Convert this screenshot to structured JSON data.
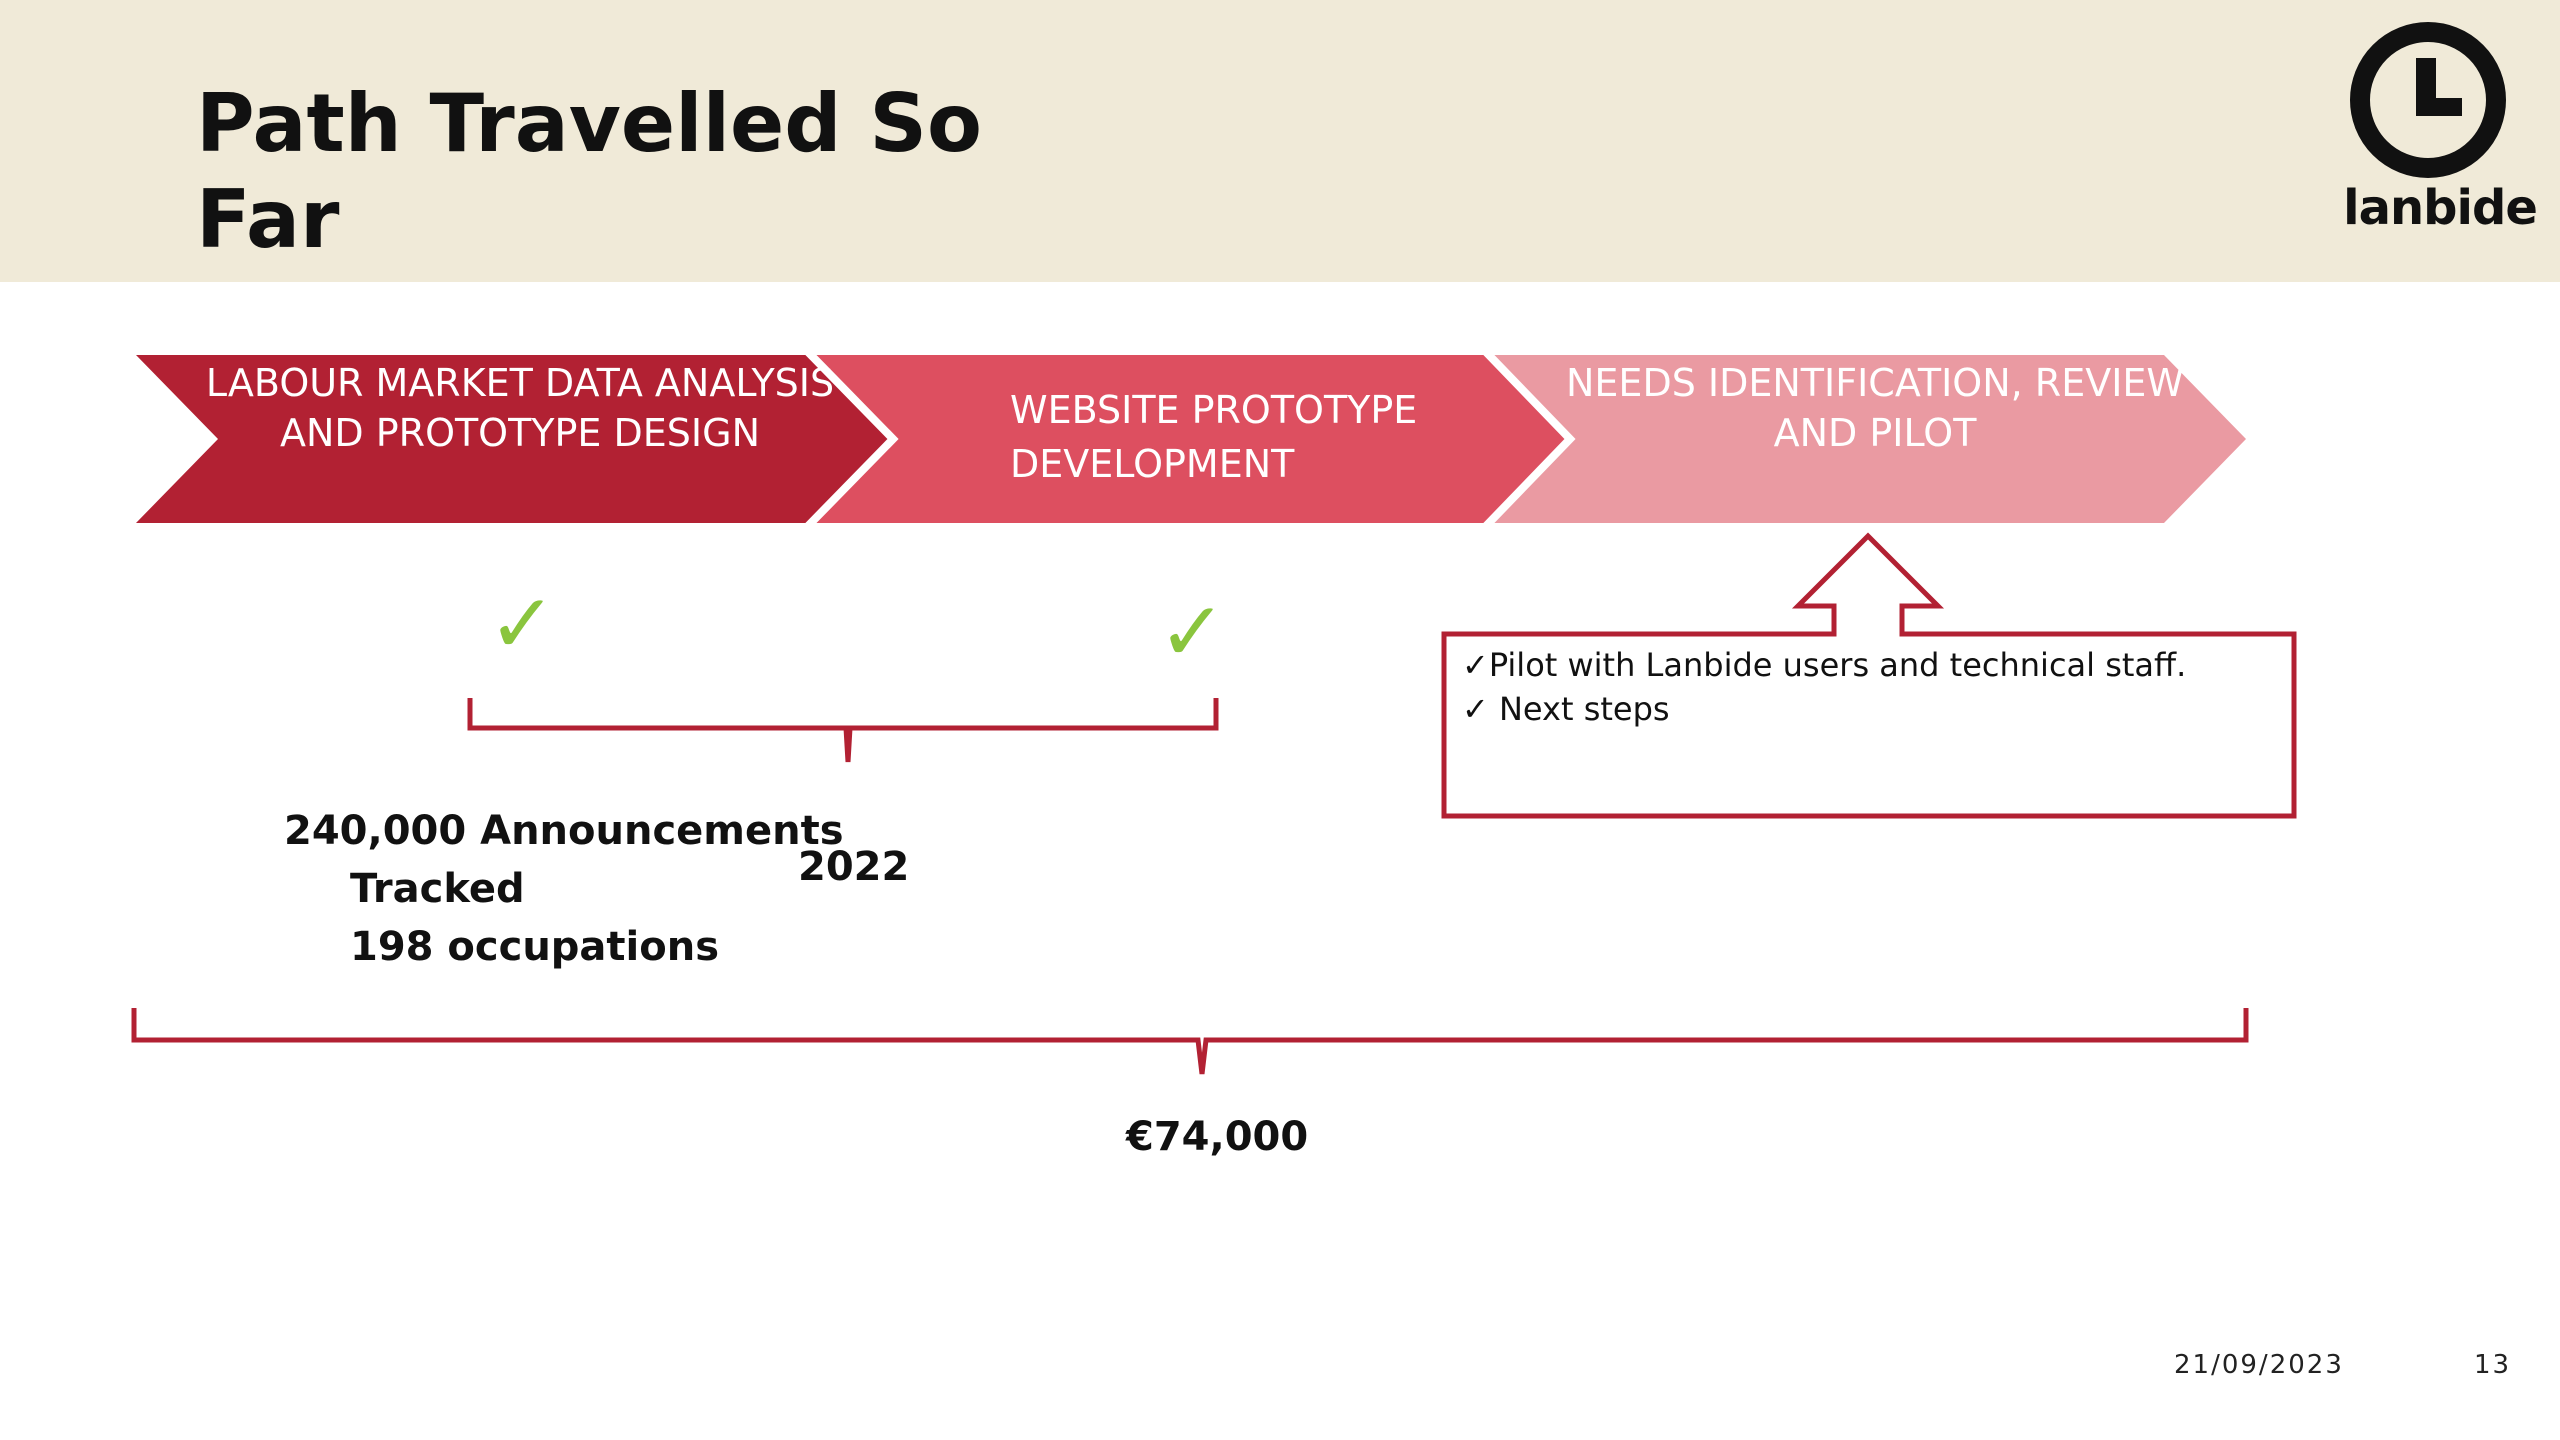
{
  "slide": {
    "title": "Path Travelled So Far",
    "logo_text": "lanbide",
    "colors": {
      "header_bg": "#f0ead8",
      "dark_red": "#b22133",
      "mid_red": "#dd4f60",
      "light_red": "#ea9aa2",
      "check_green": "#8ac53e",
      "bracket_red": "#b22133"
    }
  },
  "chevrons": [
    {
      "label": "LABOUR MARKET DATA ANALYSIS AND PROTOTYPE DESIGN",
      "color": "#b22133"
    },
    {
      "label": "WEBSITE PROTOTYPE DEVELOPMENT",
      "color": "#dd4f60"
    },
    {
      "label": "NEEDS IDENTIFICATION, REVIEW AND PILOT",
      "color": "#ea9aa2"
    }
  ],
  "checks": {
    "symbol": "✓"
  },
  "stage_notes": {
    "line1": "240,000 Announcements",
    "line2": "Tracked",
    "line3": "198 occupations",
    "year": "2022"
  },
  "pilot_box": {
    "items": [
      "✓Pilot with Lanbide users and technical staff.",
      "✓ Next steps"
    ]
  },
  "total_cost": "€74,000",
  "footer": {
    "date": "21/09/2023",
    "page": "13"
  }
}
